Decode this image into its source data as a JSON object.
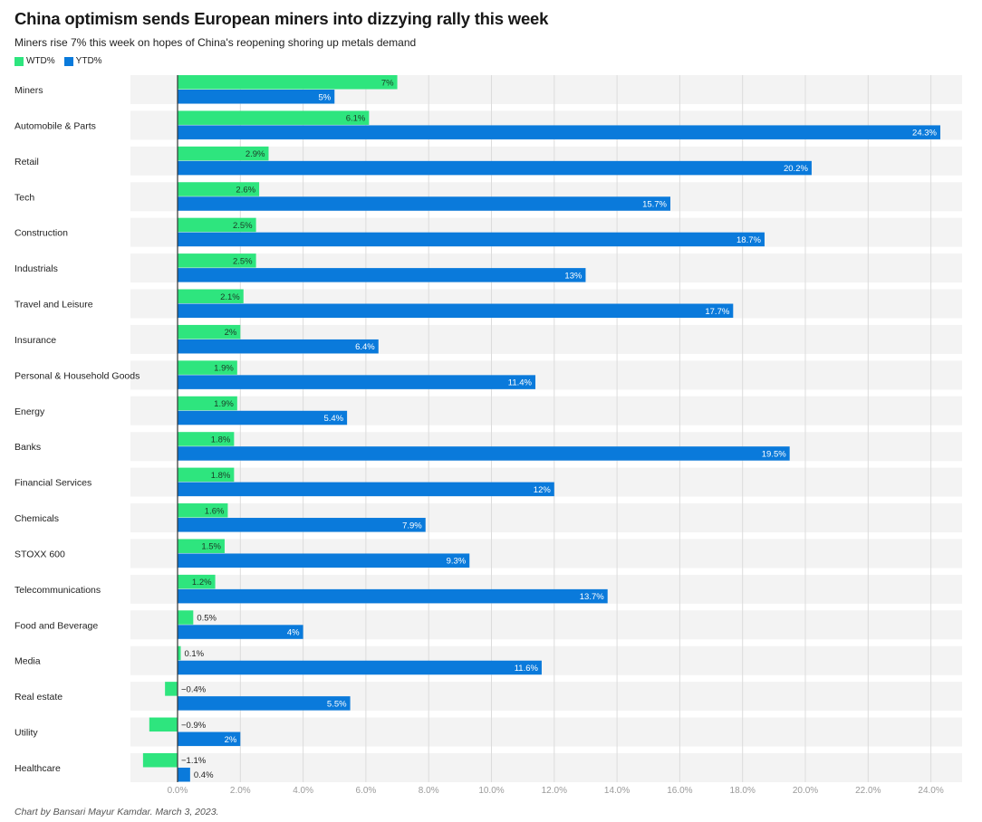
{
  "colors": {
    "wtd": "#2ee57e",
    "ytd": "#0a7adb",
    "row_bg": "#f3f3f3",
    "grid": "#dcdcdc",
    "axis": "#333333"
  },
  "footer": "Chart by Bansari Mayur Kamdar. March 3, 2023.",
  "chart_data": {
    "type": "bar",
    "orientation": "horizontal",
    "title": "China optimism sends European miners into dizzying rally this week",
    "subtitle": "Miners rise 7% this week on hopes of China's reopening shoring up metals demand",
    "categories": [
      "Miners",
      "Automobile & Parts",
      "Retail",
      "Tech",
      "Construction",
      "Industrials",
      "Travel and Leisure",
      "Insurance",
      "Personal & Household Goods",
      "Energy",
      "Banks",
      "Financial Services",
      "Chemicals",
      "STOXX 600",
      "Telecommunications",
      "Food and Beverage",
      "Media",
      "Real estate",
      "Utility",
      "Healthcare"
    ],
    "series": [
      {
        "name": "WTD%",
        "values": [
          7,
          6.1,
          2.9,
          2.6,
          2.5,
          2.5,
          2.1,
          2,
          1.9,
          1.9,
          1.8,
          1.8,
          1.6,
          1.5,
          1.2,
          0.5,
          0.1,
          -0.4,
          -0.9,
          -1.1
        ],
        "labels": [
          "7%",
          "6.1%",
          "2.9%",
          "2.6%",
          "2.5%",
          "2.5%",
          "2.1%",
          "2%",
          "1.9%",
          "1.9%",
          "1.8%",
          "1.8%",
          "1.6%",
          "1.5%",
          "1.2%",
          "0.5%",
          "0.1%",
          "−0.4%",
          "−0.9%",
          "−1.1%"
        ]
      },
      {
        "name": "YTD%",
        "values": [
          5,
          24.3,
          20.2,
          15.7,
          18.7,
          13,
          17.7,
          6.4,
          11.4,
          5.4,
          19.5,
          12,
          7.9,
          9.3,
          13.7,
          4,
          11.6,
          5.5,
          2,
          0.4
        ],
        "labels": [
          "5%",
          "24.3%",
          "20.2%",
          "15.7%",
          "18.7%",
          "13%",
          "17.7%",
          "6.4%",
          "11.4%",
          "5.4%",
          "19.5%",
          "12%",
          "7.9%",
          "9.3%",
          "13.7%",
          "4%",
          "11.6%",
          "5.5%",
          "2%",
          "0.4%"
        ]
      }
    ],
    "xlim": [
      -1.5,
      25
    ],
    "xticks": [
      0,
      2,
      4,
      6,
      8,
      10,
      12,
      14,
      16,
      18,
      20,
      22,
      24
    ],
    "xtick_labels": [
      "0.0%",
      "2.0%",
      "4.0%",
      "6.0%",
      "8.0%",
      "10.0%",
      "12.0%",
      "14.0%",
      "16.0%",
      "18.0%",
      "20.0%",
      "22.0%",
      "24.0%"
    ],
    "legend_position": "top-left",
    "grid": true
  }
}
